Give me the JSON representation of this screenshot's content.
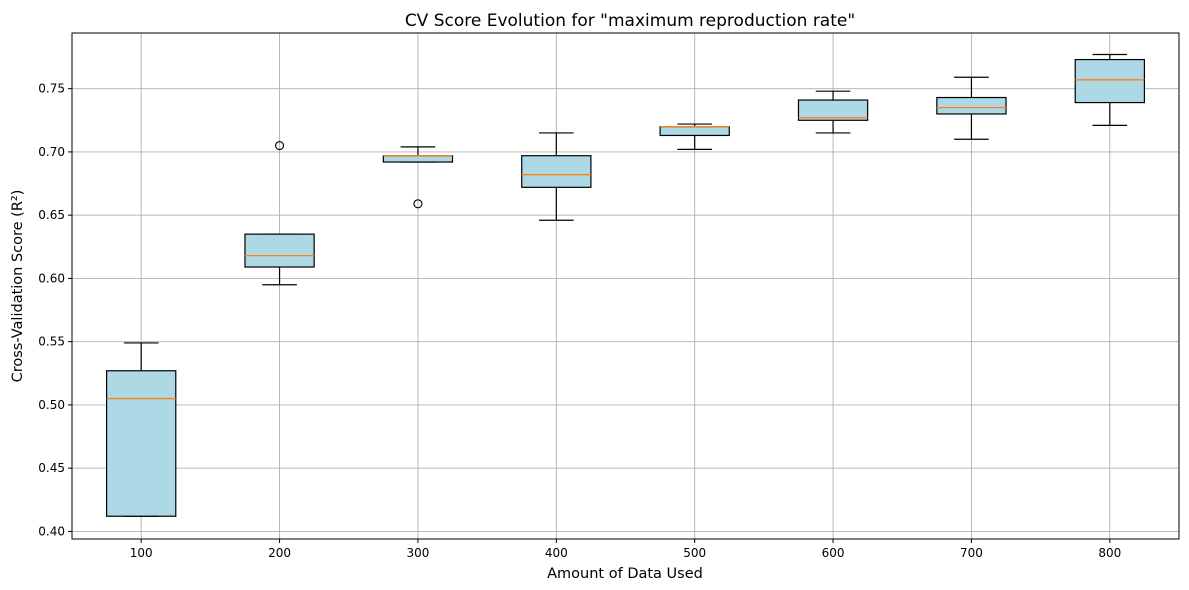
{
  "chart_data": {
    "type": "box",
    "title": "CV Score Evolution for \"maximum reproduction rate\"",
    "xlabel": "Amount of Data Used",
    "ylabel": "Cross-Validation Score (R²)",
    "categories": [
      "100",
      "200",
      "300",
      "400",
      "500",
      "600",
      "700",
      "800"
    ],
    "ylim": [
      0.394,
      0.794
    ],
    "yticks": [
      0.4,
      0.45,
      0.5,
      0.55,
      0.6,
      0.65,
      0.7,
      0.75
    ],
    "ytick_labels": [
      "0.40",
      "0.45",
      "0.50",
      "0.55",
      "0.60",
      "0.65",
      "0.70",
      "0.75"
    ],
    "grid": true,
    "box_color": "#add8e6",
    "median_color": "#ff7f0e",
    "boxes": [
      {
        "whislo": 0.412,
        "q1": 0.412,
        "med": 0.505,
        "q3": 0.527,
        "whishi": 0.549,
        "fliers": []
      },
      {
        "whislo": 0.595,
        "q1": 0.609,
        "med": 0.618,
        "q3": 0.635,
        "whishi": 0.635,
        "fliers": [
          0.705
        ]
      },
      {
        "whislo": 0.692,
        "q1": 0.692,
        "med": 0.697,
        "q3": 0.697,
        "whishi": 0.704,
        "fliers": [
          0.659
        ]
      },
      {
        "whislo": 0.646,
        "q1": 0.672,
        "med": 0.682,
        "q3": 0.697,
        "whishi": 0.715,
        "fliers": []
      },
      {
        "whislo": 0.702,
        "q1": 0.713,
        "med": 0.72,
        "q3": 0.72,
        "whishi": 0.722,
        "fliers": []
      },
      {
        "whislo": 0.715,
        "q1": 0.725,
        "med": 0.727,
        "q3": 0.741,
        "whishi": 0.748,
        "fliers": []
      },
      {
        "whislo": 0.71,
        "q1": 0.73,
        "med": 0.735,
        "q3": 0.743,
        "whishi": 0.759,
        "fliers": []
      },
      {
        "whislo": 0.721,
        "q1": 0.739,
        "med": 0.757,
        "q3": 0.773,
        "whishi": 0.777,
        "fliers": []
      }
    ]
  }
}
